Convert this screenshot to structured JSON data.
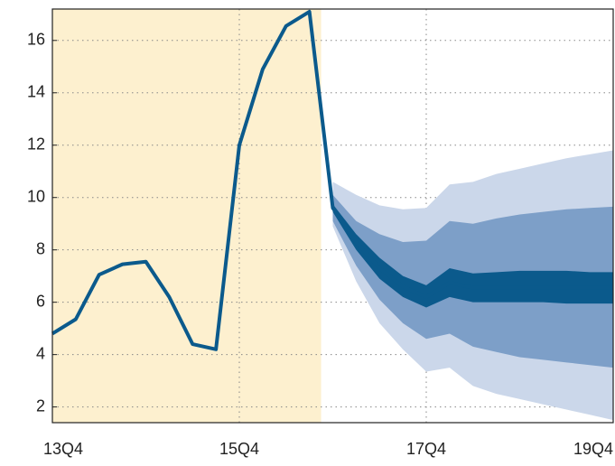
{
  "chart_data": {
    "type": "fan",
    "x": [
      0,
      1,
      2,
      3,
      4,
      5,
      6,
      7,
      8,
      9,
      10,
      11,
      12,
      13,
      14,
      15,
      16,
      17,
      18,
      19,
      20,
      21,
      22,
      23,
      24
    ],
    "xlim": [
      0,
      24
    ],
    "xticks": [
      {
        "value": 0,
        "label": "13Q4"
      },
      {
        "value": 8,
        "label": "15Q4"
      },
      {
        "value": 16,
        "label": "17Q4"
      },
      {
        "value": 24,
        "label": "19Q4"
      }
    ],
    "ylim": [
      1.4,
      17.2
    ],
    "yticks": [
      2,
      4,
      6,
      8,
      10,
      12,
      14,
      16
    ],
    "grid": true,
    "shaded_region": {
      "x": [
        0,
        11.5
      ],
      "color": "#fdf0cf"
    },
    "series": [
      {
        "color": "#0b5a8c",
        "values": [
          4.8,
          5.35,
          7.05,
          7.45,
          7.55,
          6.2,
          4.4,
          4.2,
          12.0,
          14.9,
          16.55,
          17.1,
          9.6,
          8.3,
          7.3,
          6.6,
          6.2,
          6.75,
          6.55,
          6.55,
          6.55,
          6.55,
          6.55,
          6.55,
          6.55
        ]
      }
    ],
    "band_x": [
      12,
      13,
      14,
      15,
      16,
      17,
      18,
      19,
      20,
      21,
      22,
      23,
      24
    ],
    "bands": [
      {
        "color": "#cbd7ea",
        "upper": [
          10.6,
          10.1,
          9.7,
          9.55,
          9.6,
          10.5,
          10.6,
          10.9,
          11.1,
          11.3,
          11.5,
          11.65,
          11.8
        ],
        "lower": [
          8.9,
          6.8,
          5.2,
          4.2,
          3.35,
          3.5,
          2.8,
          2.5,
          2.3,
          2.1,
          1.9,
          1.7,
          1.5
        ]
      },
      {
        "color": "#7d9fc8",
        "upper": [
          10.1,
          9.1,
          8.6,
          8.3,
          8.35,
          9.1,
          9.0,
          9.2,
          9.35,
          9.45,
          9.55,
          9.6,
          9.65
        ],
        "lower": [
          9.1,
          7.4,
          6.1,
          5.2,
          4.6,
          4.8,
          4.3,
          4.1,
          3.9,
          3.8,
          3.7,
          3.6,
          3.5
        ]
      },
      {
        "color": "#0b5a8c",
        "upper": [
          9.75,
          8.6,
          7.7,
          7.0,
          6.65,
          7.3,
          7.1,
          7.15,
          7.2,
          7.2,
          7.2,
          7.15,
          7.15
        ],
        "lower": [
          9.45,
          8.0,
          6.9,
          6.2,
          5.8,
          6.2,
          6.0,
          6.0,
          6.0,
          6.0,
          5.95,
          5.95,
          5.95
        ]
      }
    ]
  }
}
